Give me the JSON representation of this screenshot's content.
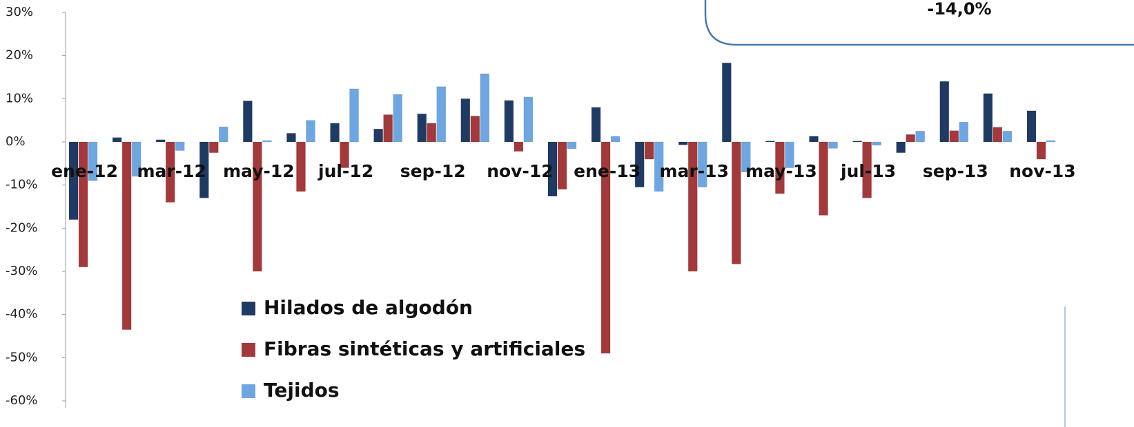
{
  "chart_data": {
    "type": "bar",
    "annotation": "-14,0%",
    "categories": [
      "ene-12",
      null,
      "mar-12",
      null,
      "may-12",
      null,
      "jul-12",
      null,
      "sep-12",
      null,
      "nov-12",
      null,
      "ene-13",
      null,
      "mar-13",
      null,
      "may-13",
      null,
      "jul-13",
      null,
      "sep-13",
      null,
      "nov-13"
    ],
    "series": [
      {
        "name": "Hilados de algodón",
        "color": "#1f3a63",
        "values": [
          -18,
          1,
          0.5,
          -13,
          9.5,
          2,
          4.3,
          3,
          6.5,
          10,
          9.6,
          -12.6,
          8,
          -10.5,
          -0.7,
          18.3,
          0.2,
          1.3,
          0.2,
          -2.5,
          14,
          11.2,
          7.2
        ]
      },
      {
        "name": "Fibras sintéticas y artificiales",
        "color": "#a3393b",
        "values": [
          -29,
          -43.5,
          -14,
          -2.5,
          -30,
          -11.5,
          -6,
          6.3,
          4.3,
          6,
          -2.2,
          -11,
          -49,
          -4,
          -30,
          -28.3,
          -12,
          -17,
          -13,
          1.7,
          2.6,
          3.4,
          -4
        ]
      },
      {
        "name": "Tejidos",
        "color": "#6ea6e2",
        "values": [
          -9,
          -8,
          -2,
          3.5,
          0.3,
          5,
          12.3,
          11,
          12.8,
          15.8,
          10.4,
          -1.6,
          1.3,
          -11.5,
          -10.5,
          -7,
          -6,
          -1.5,
          -0.8,
          2.5,
          4.6,
          2.5,
          0.3
        ]
      }
    ],
    "ylim": [
      -60,
      30
    ],
    "yticks": [
      {
        "value": -60,
        "label": "-60%"
      },
      {
        "value": -50,
        "label": "-50%"
      },
      {
        "value": -40,
        "label": "-40%"
      },
      {
        "value": -30,
        "label": "-30%"
      },
      {
        "value": -20,
        "label": "-20%"
      },
      {
        "value": -10,
        "label": "-10%"
      },
      {
        "value": 0,
        "label": "0%"
      },
      {
        "value": 10,
        "label": "10%"
      },
      {
        "value": 20,
        "label": "20%"
      },
      {
        "value": 30,
        "label": "30%"
      }
    ],
    "legend": "bottom-left"
  }
}
